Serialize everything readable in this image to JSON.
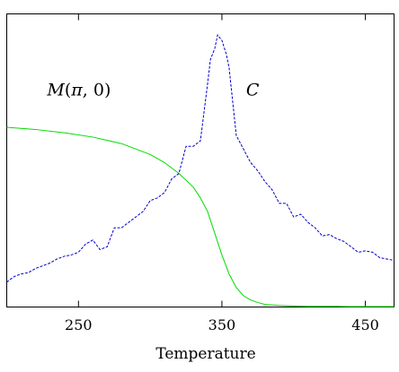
{
  "chart_data": {
    "type": "line",
    "title": "",
    "xlabel": "Temperature",
    "ylabel": "",
    "xlim": [
      200,
      470
    ],
    "ylim": [
      0,
      1
    ],
    "xticks": [
      250,
      350,
      450
    ],
    "xtick_labels": [
      "250",
      "350",
      "450"
    ],
    "grid": false,
    "annotations": [
      {
        "id": "m",
        "text": "M(π, 0)",
        "parts": {
          "prefix": "M",
          "open": "(",
          "first": "π",
          "comma": ", ",
          "second": "0",
          "close": ")"
        },
        "x": 230,
        "y": 0.8
      },
      {
        "id": "c",
        "text": "C",
        "x": 370,
        "y": 0.8
      }
    ],
    "series": [
      {
        "style": "solid",
        "color": "#00dd00",
        "x": [
          200,
          220,
          240,
          260,
          280,
          300,
          310,
          320,
          330,
          335,
          340,
          345,
          350,
          355,
          360,
          365,
          370,
          375,
          380,
          390,
          400,
          410,
          420,
          430,
          440,
          450,
          460,
          470
        ],
        "y": [
          0.66,
          0.652,
          0.64,
          0.624,
          0.6,
          0.56,
          0.53,
          0.49,
          0.44,
          0.4,
          0.35,
          0.27,
          0.19,
          0.12,
          0.07,
          0.04,
          0.024,
          0.015,
          0.008,
          0.004,
          0.002,
          0.001,
          0.001,
          0.001,
          0.0,
          0.0,
          0.0,
          0.0
        ]
      },
      {
        "style": "dashed",
        "color": "#0000cc",
        "x": [
          200,
          205,
          210,
          215,
          220,
          225,
          230,
          235,
          240,
          245,
          250,
          255,
          260,
          265,
          270,
          275,
          280,
          285,
          290,
          295,
          300,
          305,
          310,
          315,
          320,
          325,
          330,
          335,
          340,
          342,
          345,
          347,
          350,
          353,
          355,
          357,
          360,
          365,
          370,
          375,
          380,
          385,
          390,
          395,
          400,
          405,
          410,
          415,
          420,
          425,
          430,
          435,
          440,
          445,
          450,
          455,
          460,
          465,
          470
        ],
        "y": [
          0.09,
          0.11,
          0.12,
          0.125,
          0.14,
          0.15,
          0.16,
          0.175,
          0.185,
          0.19,
          0.2,
          0.23,
          0.245,
          0.21,
          0.22,
          0.29,
          0.29,
          0.31,
          0.33,
          0.35,
          0.39,
          0.4,
          0.42,
          0.47,
          0.49,
          0.59,
          0.59,
          0.61,
          0.82,
          0.91,
          0.95,
          1.0,
          0.98,
          0.93,
          0.88,
          0.78,
          0.63,
          0.58,
          0.53,
          0.5,
          0.46,
          0.43,
          0.38,
          0.38,
          0.33,
          0.34,
          0.31,
          0.29,
          0.26,
          0.265,
          0.25,
          0.24,
          0.22,
          0.2,
          0.205,
          0.2,
          0.18,
          0.175,
          0.17
        ]
      }
    ]
  }
}
